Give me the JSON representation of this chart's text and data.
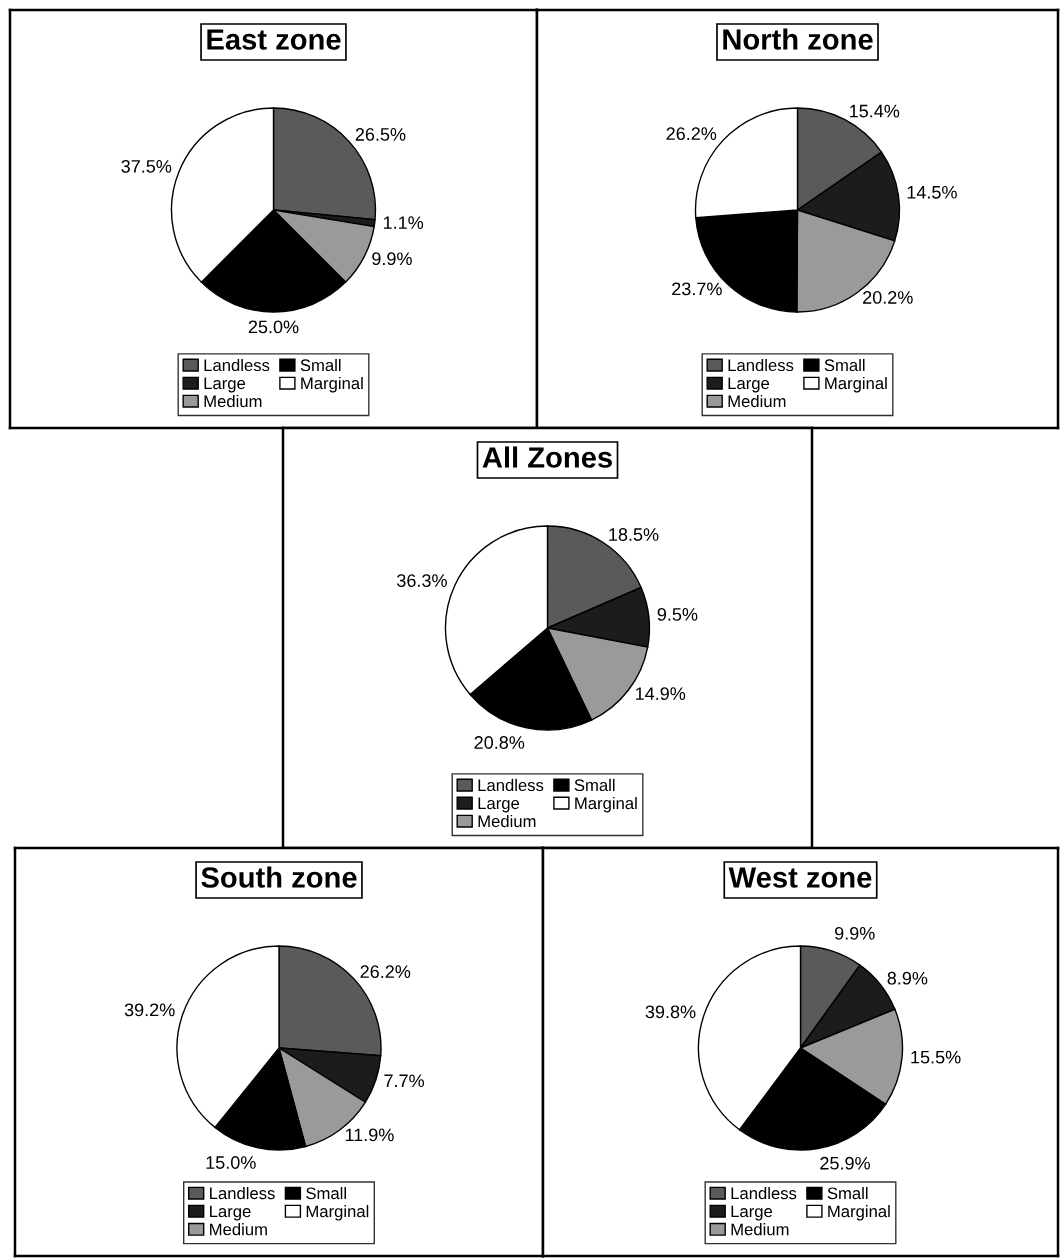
{
  "chart_data": [
    {
      "type": "pie",
      "title": "East zone",
      "categories": [
        "Landless",
        "Large",
        "Medium",
        "Small",
        "Marginal"
      ],
      "values": [
        26.5,
        1.1,
        9.9,
        25.0,
        37.5
      ],
      "value_labels": [
        "26.5%",
        "1.1%",
        "9.9%",
        "25.0%",
        "37.5%"
      ],
      "colors": [
        "#5a5a5a",
        "#1c1c1c",
        "#9a9a9a",
        "#000000",
        "#ffffff"
      ],
      "legend": "bottom"
    },
    {
      "type": "pie",
      "title": "North zone",
      "categories": [
        "Landless",
        "Large",
        "Medium",
        "Small",
        "Marginal"
      ],
      "values": [
        15.4,
        14.5,
        20.2,
        23.7,
        26.2
      ],
      "value_labels": [
        "15.4%",
        "14.5%",
        "20.2%",
        "23.7%",
        "26.2%"
      ],
      "colors": [
        "#5a5a5a",
        "#1c1c1c",
        "#9a9a9a",
        "#000000",
        "#ffffff"
      ],
      "legend": "bottom"
    },
    {
      "type": "pie",
      "title": "All Zones",
      "categories": [
        "Landless",
        "Large",
        "Medium",
        "Small",
        "Marginal"
      ],
      "values": [
        18.5,
        9.5,
        14.9,
        20.8,
        36.3
      ],
      "value_labels": [
        "18.5%",
        "9.5%",
        "14.9%",
        "20.8%",
        "36.3%"
      ],
      "colors": [
        "#5a5a5a",
        "#1c1c1c",
        "#9a9a9a",
        "#000000",
        "#ffffff"
      ],
      "legend": "bottom"
    },
    {
      "type": "pie",
      "title": "South zone",
      "categories": [
        "Landless",
        "Large",
        "Medium",
        "Small",
        "Marginal"
      ],
      "values": [
        26.2,
        7.7,
        11.9,
        15.0,
        39.2
      ],
      "value_labels": [
        "26.2%",
        "7.7%",
        "11.9%",
        "15.0%",
        "39.2%"
      ],
      "colors": [
        "#5a5a5a",
        "#1c1c1c",
        "#9a9a9a",
        "#000000",
        "#ffffff"
      ],
      "legend": "bottom"
    },
    {
      "type": "pie",
      "title": "West zone",
      "categories": [
        "Landless",
        "Large",
        "Medium",
        "Small",
        "Marginal"
      ],
      "values": [
        9.9,
        8.9,
        15.5,
        25.9,
        39.8
      ],
      "value_labels": [
        "9.9%",
        "8.9%",
        "15.5%",
        "25.9%",
        "39.8%"
      ],
      "colors": [
        "#5a5a5a",
        "#1c1c1c",
        "#9a9a9a",
        "#000000",
        "#ffffff"
      ],
      "legend": "bottom"
    }
  ]
}
